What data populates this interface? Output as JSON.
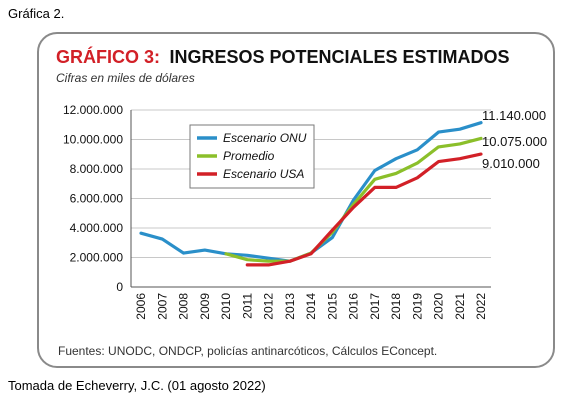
{
  "captions": {
    "top": "Gráfica 2.",
    "bottom": "Tomada de Echeverry, J.C. (01 agosto 2022)"
  },
  "chart_data": {
    "type": "line",
    "title_prefix": "GRÁFICO 3:",
    "title": "INGRESOS POTENCIALES ESTIMADOS",
    "subtitle": "Cifras en miles de dólares",
    "source": "Fuentes: UNODC, ONDCP, policías antinarcóticos, Cálculos EConcept.",
    "x": [
      "2006",
      "2007",
      "2008",
      "2009",
      "2010",
      "2011",
      "2012",
      "2013",
      "2014",
      "2015",
      "2016",
      "2017",
      "2018",
      "2019",
      "2020",
      "2021",
      "2022"
    ],
    "ylim": [
      0,
      12000000
    ],
    "yticks": [
      0,
      2000000,
      4000000,
      6000000,
      8000000,
      10000000,
      12000000
    ],
    "ytick_labels": [
      "0",
      "2.000.000",
      "4.000.000",
      "6.000.000",
      "8.000.000",
      "10.000.000",
      "12.000.000"
    ],
    "grid": true,
    "legend_position": "top-left",
    "series": [
      {
        "name": "Escenario ONU",
        "color": "#2a8fc9",
        "values": [
          3650000,
          3250000,
          2300000,
          2500000,
          2250000,
          2150000,
          1950000,
          1750000,
          2300000,
          3350000,
          5900000,
          7900000,
          8700000,
          9300000,
          10500000,
          10700000,
          11140000
        ]
      },
      {
        "name": "Promedio",
        "color": "#8bbf2a",
        "values": [
          null,
          null,
          null,
          null,
          2250000,
          1850000,
          1750000,
          1750000,
          2300000,
          3700000,
          5600000,
          7300000,
          7700000,
          8400000,
          9500000,
          9700000,
          10075000
        ]
      },
      {
        "name": "Escenario USA",
        "color": "#d22027",
        "values": [
          null,
          null,
          null,
          null,
          null,
          1500000,
          1500000,
          1750000,
          2250000,
          3850000,
          5400000,
          6750000,
          6750000,
          7400000,
          8500000,
          8700000,
          9010000
        ]
      }
    ],
    "end_labels": [
      "11.140.000",
      "10.075.000",
      "9.010.000"
    ]
  }
}
